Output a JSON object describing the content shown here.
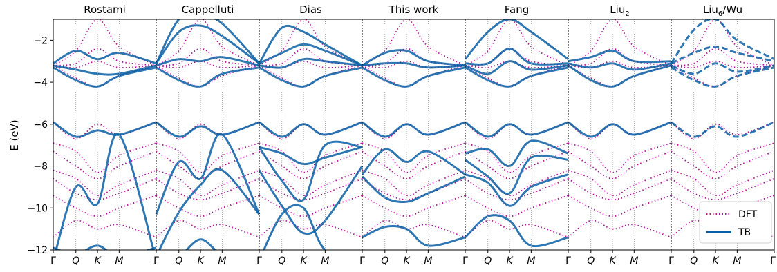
{
  "chart_data": {
    "type": "line",
    "ylabel": "E (eV)",
    "ylim": [
      -12,
      -1
    ],
    "yticks": [
      -2,
      -4,
      -6,
      -8,
      -10,
      -12
    ],
    "kpath_labels": [
      "Γ",
      "Q",
      "K",
      "M"
    ],
    "kpath_positions": [
      0,
      0.22,
      0.43,
      0.64
    ],
    "panels": [
      {
        "title": "Rostami",
        "subscript": ""
      },
      {
        "title": "Cappelluti",
        "subscript": ""
      },
      {
        "title": "Dias",
        "subscript": ""
      },
      {
        "title": "This work",
        "subscript": ""
      },
      {
        "title": "Fang",
        "subscript": ""
      },
      {
        "title": "Liu",
        "subscript": "2"
      },
      {
        "title": "Liu",
        "subscript": "6",
        "title_suffix": "/Wu"
      }
    ],
    "legend": {
      "position": "lower-right",
      "entries": [
        {
          "label": "DFT",
          "style": "dotted",
          "color": "#b5179e"
        },
        {
          "label": "TB",
          "style": "solid",
          "color": "#0b5fa5"
        }
      ]
    },
    "dft_bands": [
      [
        -3.2,
        -2.5,
        -1.0,
        -2.3,
        -3.2
      ],
      [
        -3.2,
        -3.1,
        -2.4,
        -3.0,
        -3.2
      ],
      [
        -3.2,
        -3.3,
        -3.0,
        -3.3,
        -3.2
      ],
      [
        -3.2,
        -3.8,
        -4.2,
        -3.7,
        -3.2
      ],
      [
        -5.9,
        -6.7,
        -6.0,
        -6.5,
        -5.9
      ],
      [
        -6.9,
        -7.3,
        -8.3,
        -7.5,
        -6.9
      ],
      [
        -7.3,
        -8.0,
        -8.6,
        -8.0,
        -7.3
      ],
      [
        -8.2,
        -8.6,
        -9.4,
        -8.9,
        -8.2
      ],
      [
        -8.6,
        -9.3,
        -9.6,
        -9.3,
        -8.6
      ],
      [
        -9.4,
        -10.0,
        -10.4,
        -10.0,
        -9.4
      ],
      [
        -11.4,
        -10.6,
        -11.0,
        -10.8,
        -11.4
      ]
    ],
    "series": [
      {
        "name": "Rostami",
        "bands": [
          [
            -3.1,
            -2.5,
            -2.9,
            -2.6,
            -3.1
          ],
          [
            -3.2,
            -3.4,
            -3.6,
            -3.6,
            -3.2
          ],
          [
            -3.3,
            -3.9,
            -4.2,
            -3.7,
            -3.3
          ],
          [
            -5.9,
            -6.6,
            -6.3,
            -6.5,
            -5.9
          ],
          [
            -12.5,
            -9.0,
            -9.8,
            -6.5,
            -12.5
          ],
          [
            -11.9,
            -12.2,
            -11.8,
            -12.3,
            -11.9
          ]
        ]
      },
      {
        "name": "Cappelluti",
        "bands": [
          [
            -3.1,
            -1.0,
            -0.8,
            -1.2,
            -3.1
          ],
          [
            -3.1,
            -1.6,
            -1.3,
            -1.8,
            -3.1
          ],
          [
            -3.2,
            -2.9,
            -3.0,
            -2.8,
            -3.2
          ],
          [
            -3.3,
            -3.9,
            -4.2,
            -3.6,
            -3.3
          ],
          [
            -5.9,
            -6.6,
            -6.1,
            -6.5,
            -5.9
          ],
          [
            -10.3,
            -7.8,
            -8.6,
            -6.5,
            -10.3
          ],
          [
            -12.3,
            -10.2,
            -8.9,
            -8.2,
            -10.3
          ],
          [
            -12.5,
            -12.3,
            -11.5,
            -12.2,
            -12.5
          ]
        ]
      },
      {
        "name": "Dias",
        "bands": [
          [
            -3.1,
            -1.4,
            -1.6,
            -2.2,
            -3.2
          ],
          [
            -3.1,
            -2.6,
            -2.2,
            -2.5,
            -3.2
          ],
          [
            -3.2,
            -3.3,
            -2.9,
            -3.0,
            -3.2
          ],
          [
            -3.3,
            -3.9,
            -4.2,
            -3.7,
            -3.3
          ],
          [
            -5.9,
            -6.6,
            -6.0,
            -6.5,
            -5.9
          ],
          [
            -7.1,
            -7.4,
            -7.9,
            -7.6,
            -7.1
          ],
          [
            -7.1,
            -8.7,
            -9.6,
            -7.0,
            -7.1
          ],
          [
            -8.2,
            -9.9,
            -11.2,
            -10.6,
            -8.0
          ],
          [
            -12.5,
            -10.3,
            -10.0,
            -12.0,
            -12.5
          ]
        ]
      },
      {
        "name": "This work",
        "bands": [
          [
            -3.2,
            -2.6,
            -2.5,
            -3.0,
            -3.2
          ],
          [
            -3.2,
            -3.1,
            -3.1,
            -3.3,
            -3.2
          ],
          [
            -3.3,
            -3.9,
            -4.2,
            -3.7,
            -3.3
          ],
          [
            -5.9,
            -6.6,
            -6.0,
            -6.5,
            -5.9
          ],
          [
            -8.4,
            -7.2,
            -7.8,
            -7.3,
            -8.4
          ],
          [
            -8.5,
            -9.5,
            -9.7,
            -9.3,
            -8.5
          ],
          [
            -11.4,
            -10.9,
            -11.0,
            -11.8,
            -11.4
          ]
        ]
      },
      {
        "name": "Fang",
        "bands": [
          [
            -2.9,
            -1.6,
            -1.0,
            -1.6,
            -2.9
          ],
          [
            -3.1,
            -3.1,
            -2.4,
            -3.1,
            -3.1
          ],
          [
            -3.2,
            -3.6,
            -3.0,
            -3.4,
            -3.2
          ],
          [
            -3.3,
            -3.9,
            -4.2,
            -3.7,
            -3.3
          ],
          [
            -5.9,
            -6.6,
            -6.0,
            -6.5,
            -5.9
          ],
          [
            -7.4,
            -7.2,
            -8.0,
            -6.8,
            -7.4
          ],
          [
            -7.7,
            -8.5,
            -9.3,
            -7.6,
            -7.7
          ],
          [
            -8.4,
            -8.8,
            -9.9,
            -9.0,
            -8.4
          ],
          [
            -11.4,
            -10.4,
            -10.6,
            -11.8,
            -11.4
          ]
        ]
      },
      {
        "name": "Liu2",
        "bands": [
          [
            -3.0,
            -2.8,
            -2.5,
            -3.0,
            -3.0
          ],
          [
            -3.1,
            -3.3,
            -3.1,
            -3.4,
            -3.1
          ],
          [
            -3.2,
            -3.9,
            -4.2,
            -3.7,
            -3.2
          ],
          [
            -5.9,
            -6.6,
            -6.0,
            -6.5,
            -5.9
          ]
        ]
      },
      {
        "name": "Liu6/Wu",
        "bands": [
          [
            -3.1,
            -1.5,
            -1.0,
            -2.0,
            -2.9
          ],
          [
            -3.1,
            -2.6,
            -2.3,
            -2.6,
            -3.0
          ],
          [
            -3.2,
            -3.6,
            -3.1,
            -3.5,
            -3.2
          ],
          [
            -3.3,
            -3.9,
            -4.2,
            -3.7,
            -3.3
          ],
          [
            -5.9,
            -6.6,
            -6.1,
            -6.6,
            -5.9
          ]
        ]
      }
    ]
  }
}
